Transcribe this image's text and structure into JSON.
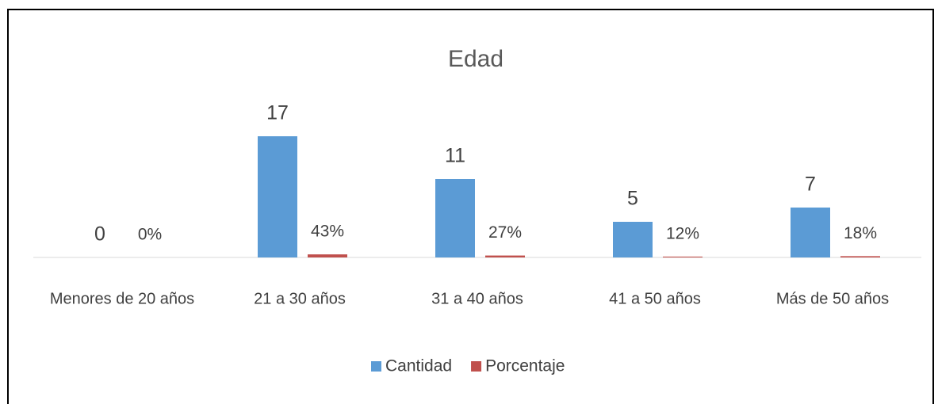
{
  "chart_data": {
    "type": "bar",
    "title": "Edad",
    "categories": [
      "Menores de 20 años",
      "21 a 30 años",
      "31 a 40 años",
      "41 a 50 años",
      "Más de 50 años"
    ],
    "series": [
      {
        "name": "Cantidad",
        "color": "#5b9bd5",
        "values": [
          0,
          17,
          11,
          5,
          7
        ]
      },
      {
        "name": "Porcentaje",
        "color": "#c0504d",
        "values": [
          0,
          0.43,
          0.27,
          0.12,
          0.18
        ],
        "value_labels": [
          "0%",
          "43%",
          "27%",
          "12%",
          "18%"
        ]
      }
    ],
    "ylim": [
      0,
      20
    ],
    "legend": "bottom"
  }
}
